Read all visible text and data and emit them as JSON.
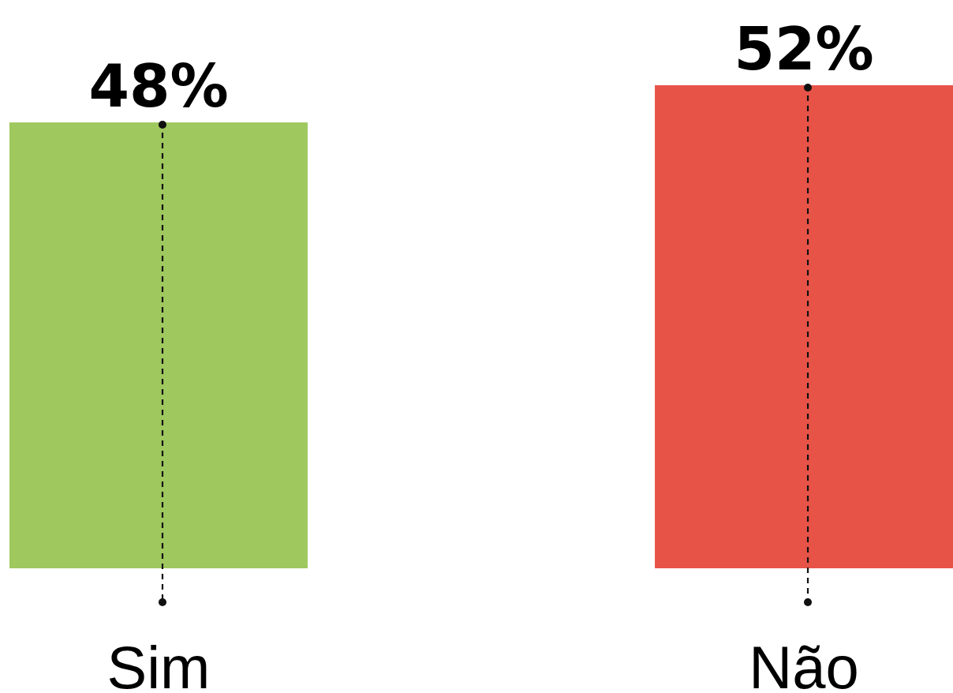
{
  "chart_data": {
    "type": "bar",
    "categories": [
      "Sim",
      "Não"
    ],
    "values": [
      48,
      52
    ],
    "colors": [
      "#9fc85e",
      "#e85348"
    ],
    "value_labels": [
      "48%",
      "52%"
    ]
  }
}
